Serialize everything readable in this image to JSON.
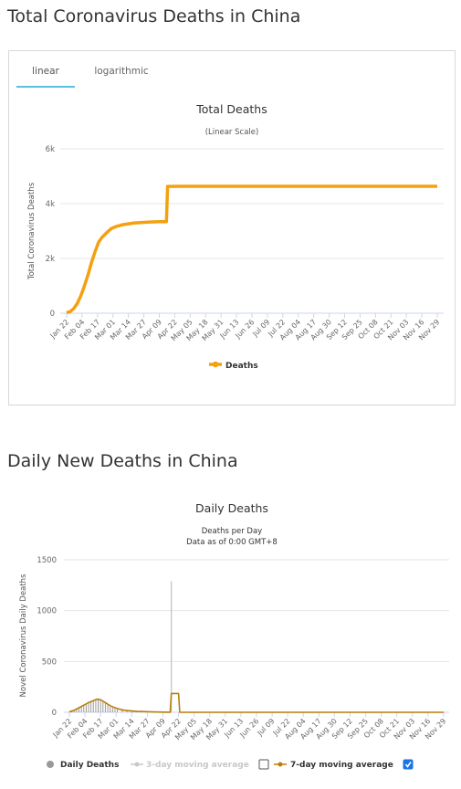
{
  "section1": {
    "title": "Total Coronavirus Deaths in China"
  },
  "tabs": [
    {
      "label": "linear",
      "active": true
    },
    {
      "label": "logarithmic",
      "active": false
    }
  ],
  "section2": {
    "title": "Daily New Deaths in China"
  },
  "colors": {
    "total_line": "#f5a00f",
    "moving_avg_7": "#b87f0b",
    "moving_avg_3": "#c8c8c8",
    "daily_bars": "#999999",
    "legend_check": "#1a73e8"
  },
  "x_categories": [
    "Jan 22",
    "Feb 04",
    "Feb 17",
    "Mar 01",
    "Mar 14",
    "Mar 27",
    "Apr 09",
    "Apr 22",
    "May 05",
    "May 18",
    "May 31",
    "Jun 13",
    "Jun 26",
    "Jul 09",
    "Jul 22",
    "Aug 04",
    "Aug 17",
    "Aug 30",
    "Sep 12",
    "Sep 25",
    "Oct 08",
    "Oct 21",
    "Nov 03",
    "Nov 16",
    "Nov 29"
  ],
  "chart_data": [
    {
      "type": "line",
      "title": "Total Deaths",
      "subtitle": "(Linear Scale)",
      "ylabel": "Total Coronavirus Deaths",
      "ylim": [
        0,
        6000
      ],
      "yticks": [
        "0",
        "2k",
        "4k",
        "6k"
      ],
      "grid": true,
      "legend_position": "bottom-center",
      "series": [
        {
          "name": "Deaths",
          "points": [
            [
              0,
              17
            ],
            [
              3,
              60
            ],
            [
              6,
              170
            ],
            [
              9,
              360
            ],
            [
              12,
              640
            ],
            [
              15,
              1000
            ],
            [
              18,
              1400
            ],
            [
              21,
              1860
            ],
            [
              24,
              2250
            ],
            [
              27,
              2600
            ],
            [
              30,
              2780
            ],
            [
              34,
              2950
            ],
            [
              38,
              3100
            ],
            [
              42,
              3170
            ],
            [
              46,
              3220
            ],
            [
              50,
              3250
            ],
            [
              56,
              3290
            ],
            [
              62,
              3310
            ],
            [
              70,
              3330
            ],
            [
              78,
              3340
            ],
            [
              84,
              3342
            ],
            [
              85,
              4630
            ],
            [
              95,
              4632
            ],
            [
              150,
              4634
            ],
            [
              200,
              4634
            ],
            [
              250,
              4634
            ],
            [
              300,
              4634
            ],
            [
              312,
              4634
            ]
          ]
        }
      ]
    },
    {
      "type": "bar",
      "title": "Daily Deaths",
      "subtitle": "Deaths per Day",
      "subtitle2": "Data as of 0:00 GMT+8",
      "ylabel": "Novel Coronavirus Daily Deaths",
      "ylim": [
        0,
        1500
      ],
      "yticks": [
        "0",
        "500",
        "1000",
        "1500"
      ],
      "grid": true,
      "legend_position": "bottom-center",
      "series": [
        {
          "name": "Daily Deaths",
          "type": "bar",
          "points": [
            [
              0,
              8
            ],
            [
              2,
              15
            ],
            [
              4,
              25
            ],
            [
              6,
              40
            ],
            [
              8,
              50
            ],
            [
              10,
              60
            ],
            [
              12,
              70
            ],
            [
              14,
              85
            ],
            [
              16,
              95
            ],
            [
              18,
              105
            ],
            [
              20,
              120
            ],
            [
              22,
              130
            ],
            [
              24,
              125
            ],
            [
              26,
              115
            ],
            [
              28,
              100
            ],
            [
              30,
              90
            ],
            [
              32,
              70
            ],
            [
              34,
              55
            ],
            [
              36,
              45
            ],
            [
              38,
              38
            ],
            [
              40,
              30
            ],
            [
              44,
              22
            ],
            [
              48,
              15
            ],
            [
              52,
              10
            ],
            [
              56,
              7
            ],
            [
              60,
              5
            ],
            [
              66,
              4
            ],
            [
              72,
              3
            ],
            [
              78,
              2
            ],
            [
              85,
              1290
            ],
            [
              95,
              0
            ],
            [
              312,
              0
            ]
          ]
        },
        {
          "name": "3-day moving average",
          "type": "line",
          "enabled": false
        },
        {
          "name": "7-day moving average",
          "type": "line",
          "enabled": true,
          "points": [
            [
              0,
              5
            ],
            [
              4,
              20
            ],
            [
              8,
              45
            ],
            [
              12,
              70
            ],
            [
              16,
              95
            ],
            [
              20,
              115
            ],
            [
              22,
              125
            ],
            [
              24,
              128
            ],
            [
              26,
              123
            ],
            [
              28,
              110
            ],
            [
              30,
              95
            ],
            [
              34,
              65
            ],
            [
              38,
              45
            ],
            [
              42,
              30
            ],
            [
              46,
              20
            ],
            [
              50,
              15
            ],
            [
              56,
              10
            ],
            [
              62,
              7
            ],
            [
              70,
              4
            ],
            [
              78,
              2
            ],
            [
              84,
              1
            ],
            [
              85,
              185
            ],
            [
              91,
              185
            ],
            [
              92,
              0
            ],
            [
              312,
              0
            ]
          ]
        }
      ]
    }
  ]
}
